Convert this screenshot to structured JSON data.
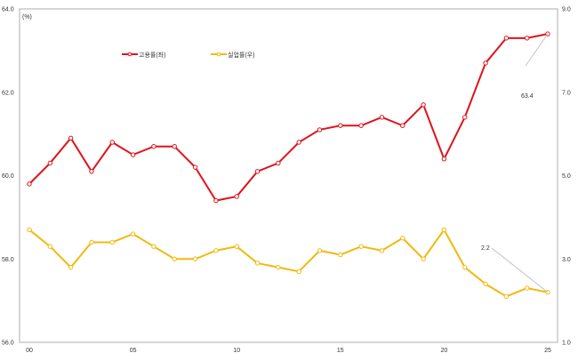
{
  "chart_data": {
    "type": "line",
    "unit_label": "(%)",
    "x": [
      "00",
      "01",
      "02",
      "03",
      "04",
      "05",
      "06",
      "07",
      "08",
      "09",
      "10",
      "11",
      "12",
      "13",
      "14",
      "15",
      "16",
      "17",
      "18",
      "19",
      "20",
      "21",
      "22",
      "23",
      "24",
      "25"
    ],
    "x_tick_labels": [
      "00",
      "05",
      "10",
      "15",
      "20",
      "25"
    ],
    "y_left": {
      "range": [
        56.0,
        64.0
      ],
      "ticks": [
        "56.0",
        "58.0",
        "60.0",
        "62.0",
        "64.0"
      ]
    },
    "y_right": {
      "range": [
        1.0,
        9.0
      ],
      "ticks": [
        "1.0",
        "3.0",
        "5.0",
        "7.0",
        "9.0"
      ]
    },
    "grid": false,
    "legend_placement": "top-left",
    "series": [
      {
        "name": "고용률(좌)",
        "axis": "left",
        "color": "#e0121b",
        "values": [
          59.8,
          60.3,
          60.9,
          60.1,
          60.8,
          60.5,
          60.7,
          60.7,
          60.2,
          59.4,
          59.5,
          60.1,
          60.3,
          60.8,
          61.1,
          61.2,
          61.2,
          61.4,
          61.2,
          61.7,
          60.4,
          61.4,
          62.7,
          63.3,
          63.3,
          63.4
        ]
      },
      {
        "name": "실업률(우)",
        "axis": "right",
        "color": "#f2b90c",
        "values": [
          3.7,
          3.3,
          2.8,
          3.4,
          3.4,
          3.6,
          3.3,
          3.0,
          3.0,
          3.2,
          3.3,
          2.9,
          2.8,
          2.7,
          3.2,
          3.1,
          3.3,
          3.2,
          3.5,
          3.0,
          3.7,
          2.8,
          2.4,
          2.1,
          2.3,
          2.2
        ]
      }
    ],
    "annotations": [
      {
        "text": "63.4",
        "series": 0,
        "x": "25"
      },
      {
        "text": "2.2",
        "series": 1,
        "x": "25"
      }
    ]
  }
}
